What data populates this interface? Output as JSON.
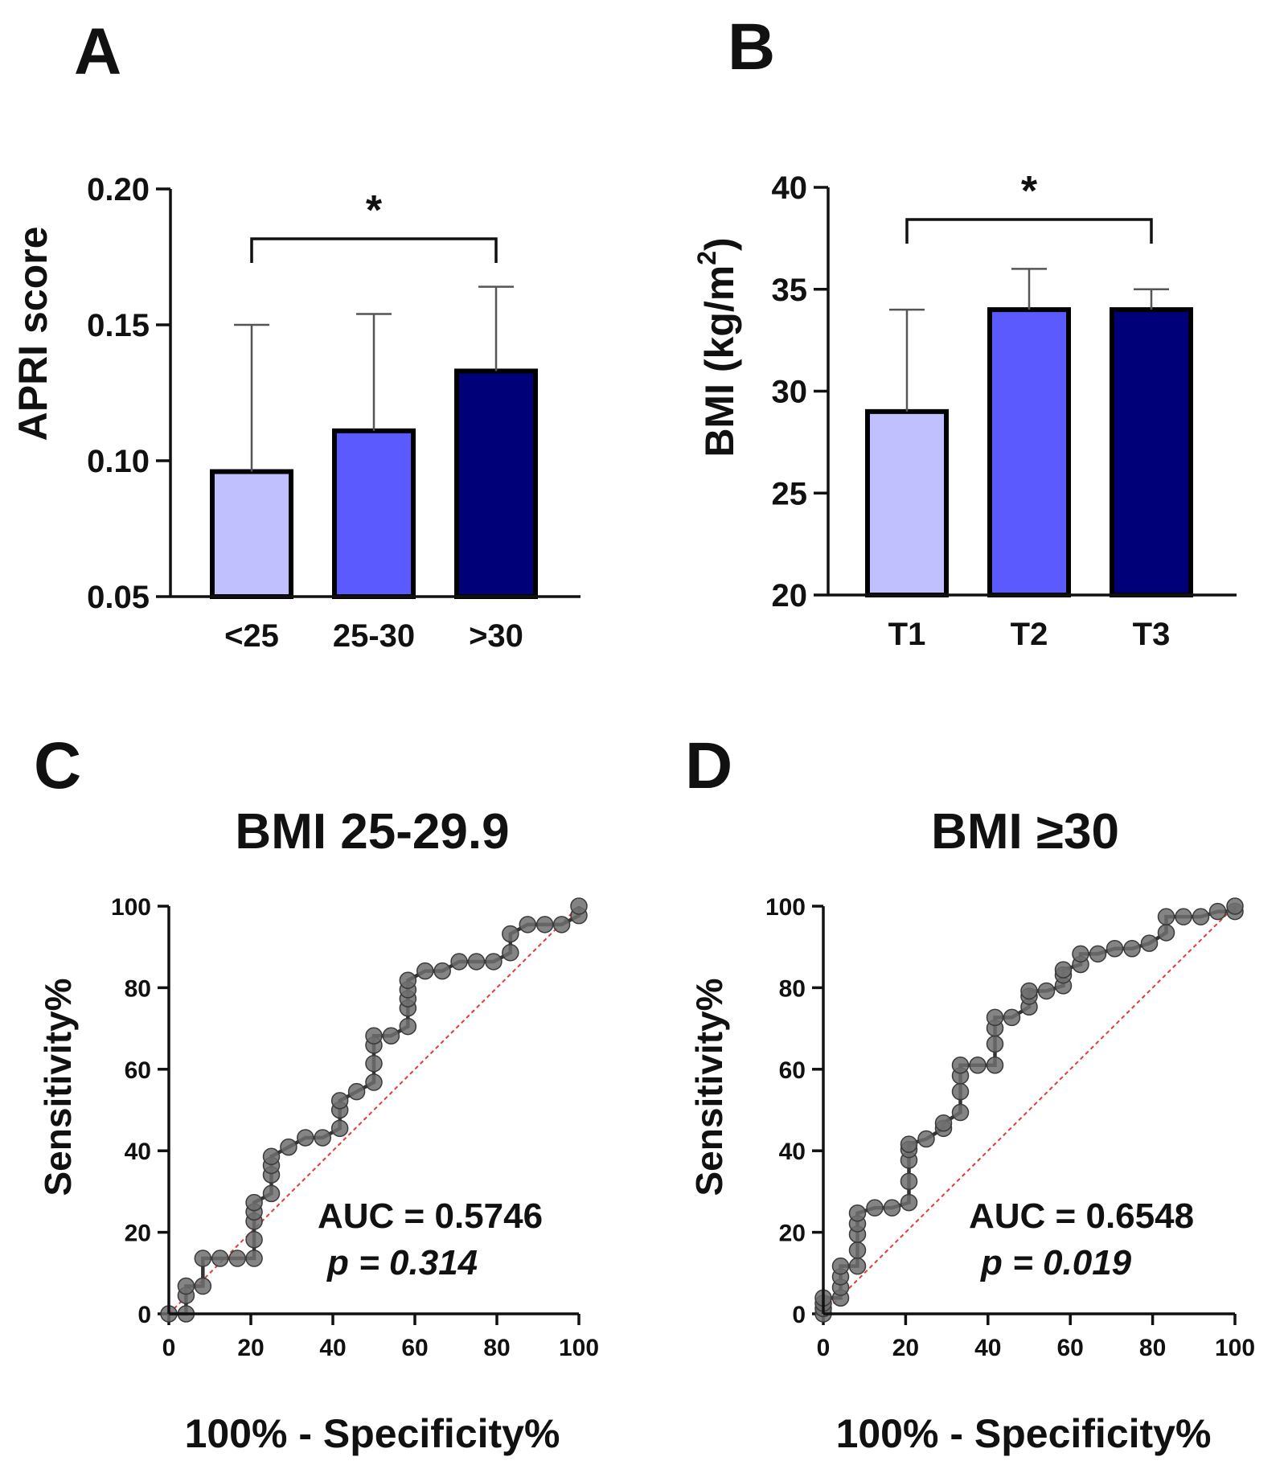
{
  "panels": {
    "A": {
      "letter": "A"
    },
    "B": {
      "letter": "B"
    },
    "C": {
      "letter": "C"
    },
    "D": {
      "letter": "D"
    }
  },
  "chart_data": [
    {
      "id": "A",
      "type": "bar",
      "title": "",
      "xlabel": "",
      "ylabel": "APRI score",
      "ylim": [
        0.05,
        0.2
      ],
      "yticks": [
        "0.05",
        "0.10",
        "0.15",
        "0.20"
      ],
      "ytick_values": [
        0.05,
        0.1,
        0.15,
        0.2
      ],
      "categories": [
        "<25",
        "25-30",
        ">30"
      ],
      "values": [
        0.096,
        0.111,
        0.133
      ],
      "error_upper": [
        0.15,
        0.154,
        0.164
      ],
      "colors": [
        "#c0c0ff",
        "#5a5aff",
        "#000078"
      ],
      "significance": {
        "from": "<25",
        "to": ">30",
        "label": "*"
      }
    },
    {
      "id": "B",
      "type": "bar",
      "title": "",
      "xlabel": "",
      "ylabel": "BMI (kg/m",
      "ylabel_superscript": "2",
      "ylabel_close": ")",
      "ylim": [
        20,
        40
      ],
      "yticks": [
        "20",
        "25",
        "30",
        "35",
        "40"
      ],
      "ytick_values": [
        20,
        25,
        30,
        35,
        40
      ],
      "categories": [
        "T1",
        "T2",
        "T3"
      ],
      "values": [
        29,
        34,
        34
      ],
      "error_upper": [
        34,
        36,
        35
      ],
      "colors": [
        "#c0c0ff",
        "#5a5aff",
        "#000078"
      ],
      "significance": {
        "from": "T1",
        "to": "T3",
        "label": "*"
      }
    },
    {
      "id": "C",
      "type": "line",
      "title": "BMI 25-29.9",
      "xlabel": "100% - Specificity%",
      "ylabel": "Sensitivity%",
      "xlim": [
        0,
        100
      ],
      "ylim": [
        0,
        100
      ],
      "xticks": [
        "0",
        "20",
        "40",
        "60",
        "80",
        "100"
      ],
      "yticks": [
        "0",
        "20",
        "40",
        "60",
        "80",
        "100"
      ],
      "tick_values": [
        0,
        20,
        40,
        60,
        80,
        100
      ],
      "auc_text": "AUC = 0.5746",
      "p_text": "p = 0.314",
      "series": [
        {
          "name": "ROC",
          "x": [
            0,
            4.2,
            4.2,
            4.2,
            8.3,
            8.3,
            12.5,
            16.7,
            20.8,
            20.8,
            20.8,
            20.8,
            20.8,
            25,
            25,
            25,
            25,
            29.2,
            33.3,
            37.5,
            41.7,
            41.7,
            41.7,
            45.8,
            50,
            50,
            50,
            50,
            54.2,
            58.3,
            58.3,
            58.3,
            58.3,
            58.3,
            62.5,
            66.7,
            70.8,
            75,
            79.2,
            83.3,
            83.3,
            87.5,
            91.7,
            95.8,
            100,
            100
          ],
          "y": [
            0,
            0,
            4.5,
            6.8,
            6.8,
            13.6,
            13.6,
            13.6,
            13.6,
            18.2,
            22.7,
            25,
            27.3,
            29.5,
            34.1,
            36.4,
            38.6,
            40.9,
            43.2,
            43.2,
            45.5,
            50,
            52.3,
            54.5,
            56.8,
            61.4,
            65.9,
            68.2,
            68.2,
            70.5,
            75,
            77.3,
            79.5,
            81.8,
            84.1,
            84.1,
            86.4,
            86.4,
            86.4,
            88.6,
            93.2,
            95.5,
            95.5,
            95.5,
            97.7,
            100
          ]
        },
        {
          "name": "Reference",
          "x": [
            0,
            100
          ],
          "y": [
            0,
            100
          ]
        }
      ]
    },
    {
      "id": "D",
      "type": "line",
      "title": "BMI ≥30",
      "xlabel": "100% - Specificity%",
      "ylabel": "Sensitivity%",
      "xlim": [
        0,
        100
      ],
      "ylim": [
        0,
        100
      ],
      "xticks": [
        "0",
        "20",
        "40",
        "60",
        "80",
        "100"
      ],
      "yticks": [
        "0",
        "20",
        "40",
        "60",
        "80",
        "100"
      ],
      "tick_values": [
        0,
        20,
        40,
        60,
        80,
        100
      ],
      "auc_text": "AUC = 0.6548",
      "p_text": "p = 0.019",
      "series": [
        {
          "name": "ROC",
          "x": [
            0,
            0,
            0,
            0,
            4.2,
            4.2,
            4.2,
            4.2,
            8.3,
            8.3,
            8.3,
            8.3,
            8.3,
            12.5,
            16.7,
            20.8,
            20.8,
            20.8,
            20.8,
            20.8,
            25,
            29.2,
            29.2,
            33.3,
            33.3,
            33.3,
            33.3,
            37.5,
            41.7,
            41.7,
            41.7,
            41.7,
            45.8,
            50,
            50,
            50,
            54.2,
            58.3,
            58.3,
            58.3,
            62.5,
            62.5,
            66.7,
            70.8,
            75,
            79.2,
            83.3,
            83.3,
            87.5,
            91.7,
            95.8,
            100,
            100
          ],
          "y": [
            0,
            1.3,
            2.6,
            3.9,
            3.9,
            6.5,
            9.1,
            11.7,
            11.7,
            15.6,
            19.5,
            22.1,
            24.7,
            26,
            26,
            27.3,
            32.5,
            37.7,
            40.3,
            41.6,
            42.9,
            45.5,
            46.8,
            49.4,
            54.5,
            58.4,
            61,
            61,
            61,
            66.2,
            70.1,
            72.7,
            72.7,
            75.3,
            77.9,
            79.2,
            79.2,
            80.5,
            83.1,
            84.4,
            85.7,
            88.3,
            88.3,
            89.6,
            89.6,
            90.9,
            93.5,
            97.4,
            97.4,
            97.4,
            98.7,
            98.7,
            100
          ]
        },
        {
          "name": "Reference",
          "x": [
            0,
            100
          ],
          "y": [
            0,
            100
          ]
        }
      ]
    }
  ],
  "colors": {
    "roc_line": "#333333",
    "roc_marker": "#6e6e6e",
    "reference_line": "#e33b3b",
    "axis": "#111111"
  }
}
